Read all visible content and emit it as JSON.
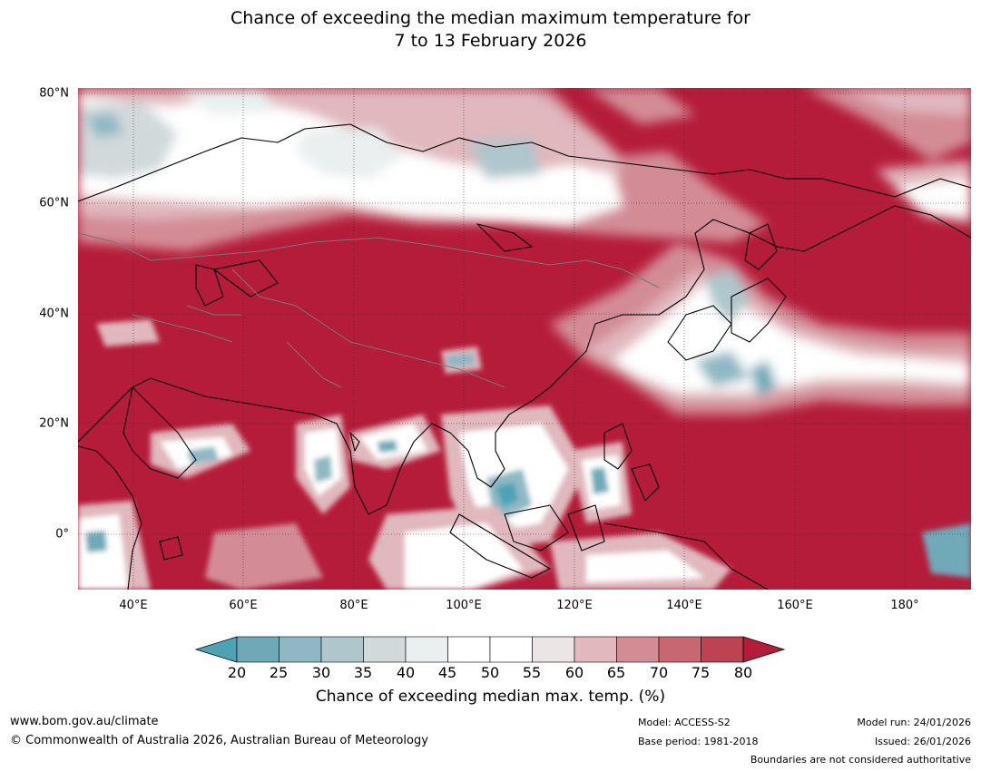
{
  "title_line1": "Chance of exceeding the median maximum temperature for",
  "title_line2": "7 to 13 February 2026",
  "map": {
    "lon_range": [
      30,
      192
    ],
    "lat_range": [
      -10,
      81
    ],
    "lat_ticks": [
      {
        "value": 80,
        "label": "80°N"
      },
      {
        "value": 60,
        "label": "60°N"
      },
      {
        "value": 40,
        "label": "40°N"
      },
      {
        "value": 20,
        "label": "20°N"
      },
      {
        "value": 0,
        "label": "0°"
      }
    ],
    "lon_ticks": [
      {
        "value": 40,
        "label": "40°E"
      },
      {
        "value": 60,
        "label": "60°E"
      },
      {
        "value": 80,
        "label": "80°E"
      },
      {
        "value": 100,
        "label": "100°E"
      },
      {
        "value": 120,
        "label": "120°E"
      },
      {
        "value": 140,
        "label": "140°E"
      },
      {
        "value": 160,
        "label": "160°E"
      },
      {
        "value": 180,
        "label": "180°"
      }
    ]
  },
  "colorbar": {
    "label": "Chance of exceeding median max. temp. (%)",
    "ticks": [
      "20",
      "25",
      "30",
      "35",
      "40",
      "45",
      "50",
      "55",
      "60",
      "65",
      "70",
      "75",
      "80"
    ],
    "colors": [
      "#4da3b5",
      "#6fa9b8",
      "#8fb8c4",
      "#aec6cc",
      "#d1d9db",
      "#eaeff0",
      "#ffffff",
      "#ffffff",
      "#ece5e6",
      "#e0b8bd",
      "#d38c96",
      "#c86672",
      "#bd4252",
      "#b51c3a"
    ]
  },
  "footer": {
    "url": "www.bom.gov.au/climate",
    "copyright": "© Commonwealth of Australia 2026, Australian Bureau of Meteorology",
    "model": "Model: ACCESS-S2",
    "base_period": "Base period: 1981-2018",
    "model_run": "Model run: 24/01/2026",
    "issued": "Issued: 26/01/2026",
    "boundaries_note": "Boundaries are not considered authoritative"
  }
}
